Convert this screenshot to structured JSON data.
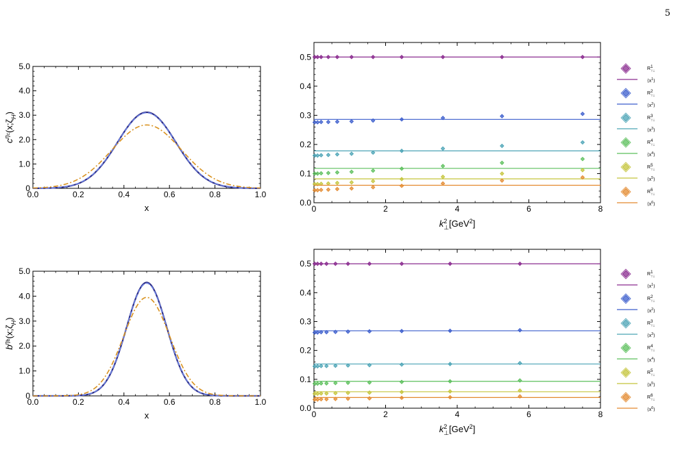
{
  "page_number": "5",
  "colors": {
    "n1": "#8a2b8f",
    "n2": "#3a5ccc",
    "n3": "#4aa3b5",
    "n4": "#5bbf5b",
    "n5": "#c4c43a",
    "n6": "#e3892e",
    "curve_solid": "#2e2f88",
    "curve_dash": "#6b7fe0",
    "curve_dashdot": "#d9921f"
  },
  "chart_data": [
    {
      "id": "c-distribution",
      "type": "line",
      "ylabel_base": "c",
      "ylabel_sup": "η",
      "ylabel_sup_sub": "c",
      "ylabel_rest": "(x;ζ",
      "ylabel_rest_sub": "H",
      "ylabel_close": ")",
      "xlabel": "x",
      "xlim": [
        0,
        1
      ],
      "ylim": [
        0,
        5
      ],
      "xticks": [
        "0.0",
        "0.2",
        "0.4",
        "0.6",
        "0.8",
        "1.0"
      ],
      "yticks": [
        "0",
        "1.0",
        "2.0",
        "3.0",
        "4.0",
        "5.0"
      ],
      "series": [
        {
          "style": "solid",
          "peak": 3.12,
          "center": 0.5,
          "sigma": 0.128
        },
        {
          "style": "dashed",
          "peak": 3.1,
          "center": 0.5,
          "sigma": 0.129
        },
        {
          "style": "dashdot",
          "peak": 2.6,
          "center": 0.5,
          "sigma": 0.153
        }
      ]
    },
    {
      "id": "c-moments",
      "type": "scatter",
      "xlabel_base": "k",
      "xlabel_sup": "2",
      "xlabel_sub": "⊥",
      "xlabel_unit": "[GeV",
      "xlabel_unit_sup": "2",
      "xlabel_unit_close": "]",
      "xlim": [
        0,
        8
      ],
      "ylim": [
        0,
        0.55
      ],
      "xticks": [
        "0",
        "2",
        "4",
        "6",
        "8"
      ],
      "yticks": [
        "0.0",
        "0.1",
        "0.2",
        "0.3",
        "0.4",
        "0.5"
      ],
      "x": [
        0.02,
        0.1,
        0.2,
        0.4,
        0.65,
        1.05,
        1.65,
        2.45,
        3.6,
        5.25,
        7.5
      ],
      "series": [
        {
          "n": 1,
          "points": [
            0.5,
            0.5,
            0.5,
            0.5,
            0.5,
            0.5,
            0.5,
            0.5,
            0.5,
            0.5,
            0.5
          ],
          "line": 0.5
        },
        {
          "n": 2,
          "points": [
            0.276,
            0.276,
            0.277,
            0.277,
            0.278,
            0.279,
            0.282,
            0.286,
            0.291,
            0.297,
            0.305
          ],
          "line": 0.286
        },
        {
          "n": 3,
          "points": [
            0.162,
            0.162,
            0.163,
            0.164,
            0.166,
            0.168,
            0.172,
            0.178,
            0.186,
            0.195,
            0.207
          ],
          "line": 0.178
        },
        {
          "n": 4,
          "points": [
            0.1,
            0.1,
            0.101,
            0.102,
            0.104,
            0.106,
            0.11,
            0.117,
            0.126,
            0.137,
            0.15
          ],
          "line": 0.118
        },
        {
          "n": 5,
          "points": [
            0.064,
            0.064,
            0.065,
            0.066,
            0.068,
            0.07,
            0.074,
            0.081,
            0.089,
            0.1,
            0.112
          ],
          "line": 0.082
        },
        {
          "n": 6,
          "points": [
            0.043,
            0.043,
            0.044,
            0.045,
            0.047,
            0.049,
            0.053,
            0.058,
            0.066,
            0.076,
            0.087
          ],
          "line": 0.06
        }
      ]
    },
    {
      "id": "b-distribution",
      "type": "line",
      "ylabel_base": "b",
      "ylabel_sup": "η",
      "ylabel_sup_sub": "b",
      "ylabel_rest": "(x;ζ",
      "ylabel_rest_sub": "H",
      "ylabel_close": ")",
      "xlabel": "x",
      "xlim": [
        0,
        1
      ],
      "ylim": [
        0,
        5
      ],
      "xticks": [
        "0.0",
        "0.2",
        "0.4",
        "0.6",
        "0.8",
        "1.0"
      ],
      "yticks": [
        "0",
        "1.0",
        "2.0",
        "3.0",
        "4.0",
        "5.0"
      ],
      "series": [
        {
          "style": "solid",
          "peak": 4.55,
          "center": 0.5,
          "sigma": 0.088
        },
        {
          "style": "dashed",
          "peak": 4.52,
          "center": 0.5,
          "sigma": 0.0885
        },
        {
          "style": "dashdot",
          "peak": 3.95,
          "center": 0.5,
          "sigma": 0.101
        }
      ]
    },
    {
      "id": "b-moments",
      "type": "scatter",
      "xlabel_base": "k",
      "xlabel_sup": "2",
      "xlabel_sub": "⊥",
      "xlabel_unit": "[GeV",
      "xlabel_unit_sup": "2",
      "xlabel_unit_close": "]",
      "xlim": [
        0,
        8
      ],
      "ylim": [
        0,
        0.55
      ],
      "xticks": [
        "0",
        "2",
        "4",
        "6",
        "8"
      ],
      "yticks": [
        "0.0",
        "0.1",
        "0.2",
        "0.3",
        "0.4",
        "0.5"
      ],
      "x": [
        0.02,
        0.1,
        0.2,
        0.35,
        0.6,
        0.95,
        1.55,
        2.45,
        3.8,
        5.75
      ],
      "series": [
        {
          "n": 1,
          "points": [
            0.5,
            0.5,
            0.5,
            0.5,
            0.5,
            0.5,
            0.5,
            0.5,
            0.5,
            0.5
          ],
          "line": 0.5
        },
        {
          "n": 2,
          "points": [
            0.262,
            0.262,
            0.263,
            0.263,
            0.264,
            0.265,
            0.266,
            0.267,
            0.268,
            0.27
          ],
          "line": 0.268
        },
        {
          "n": 3,
          "points": [
            0.145,
            0.145,
            0.146,
            0.146,
            0.147,
            0.148,
            0.149,
            0.151,
            0.153,
            0.156
          ],
          "line": 0.153
        },
        {
          "n": 4,
          "points": [
            0.085,
            0.085,
            0.086,
            0.086,
            0.087,
            0.088,
            0.089,
            0.091,
            0.093,
            0.096
          ],
          "line": 0.093
        },
        {
          "n": 5,
          "points": [
            0.05,
            0.05,
            0.051,
            0.051,
            0.052,
            0.053,
            0.054,
            0.056,
            0.058,
            0.061
          ],
          "line": 0.057
        },
        {
          "n": 6,
          "points": [
            0.03,
            0.03,
            0.031,
            0.031,
            0.032,
            0.033,
            0.034,
            0.036,
            0.038,
            0.041
          ],
          "line": 0.037
        }
      ]
    }
  ],
  "legends": [
    {
      "for": "c-moments",
      "entries": [
        {
          "n": 1,
          "marker_label": "R",
          "marker_sup": "1",
          "marker_sub": "↑↓",
          "line_label": "⟨x",
          "line_sup": "1",
          "line_close": "⟩"
        },
        {
          "n": 2,
          "marker_label": "R",
          "marker_sup": "2",
          "marker_sub": "↑↓",
          "line_label": "⟨x",
          "line_sup": "2",
          "line_close": "⟩"
        },
        {
          "n": 3,
          "marker_label": "R",
          "marker_sup": "3",
          "marker_sub": "↑↓",
          "line_label": "⟨x",
          "line_sup": "3",
          "line_close": "⟩"
        },
        {
          "n": 4,
          "marker_label": "R",
          "marker_sup": "4",
          "marker_sub": "↑↓",
          "line_label": "⟨x",
          "line_sup": "4",
          "line_close": "⟩"
        },
        {
          "n": 5,
          "marker_label": "R",
          "marker_sup": "5",
          "marker_sub": "↑↓",
          "line_label": "⟨x",
          "line_sup": "5",
          "line_close": "⟩"
        },
        {
          "n": 6,
          "marker_label": "R",
          "marker_sup": "6",
          "marker_sub": "↑↓",
          "line_label": "⟨x",
          "line_sup": "6",
          "line_close": "⟩"
        }
      ]
    },
    {
      "for": "b-moments",
      "entries": [
        {
          "n": 1,
          "marker_label": "R",
          "marker_sup": "1",
          "marker_sub": "↑↓",
          "line_label": "⟨x",
          "line_sup": "1",
          "line_close": "⟩"
        },
        {
          "n": 2,
          "marker_label": "R",
          "marker_sup": "2",
          "marker_sub": "↑↓",
          "line_label": "⟨x",
          "line_sup": "2",
          "line_close": "⟩"
        },
        {
          "n": 3,
          "marker_label": "R",
          "marker_sup": "3",
          "marker_sub": "↑↓",
          "line_label": "⟨x",
          "line_sup": "3",
          "line_close": "⟩"
        },
        {
          "n": 4,
          "marker_label": "R",
          "marker_sup": "4",
          "marker_sub": "↑↓",
          "line_label": "⟨x",
          "line_sup": "4",
          "line_close": "⟩"
        },
        {
          "n": 5,
          "marker_label": "R",
          "marker_sup": "5",
          "marker_sub": "↑↓",
          "line_label": "⟨x",
          "line_sup": "5",
          "line_close": "⟩"
        },
        {
          "n": 6,
          "marker_label": "R",
          "marker_sup": "6",
          "marker_sub": "↑↓",
          "line_label": "⟨x",
          "line_sup": "6",
          "line_close": "⟩"
        }
      ]
    }
  ]
}
